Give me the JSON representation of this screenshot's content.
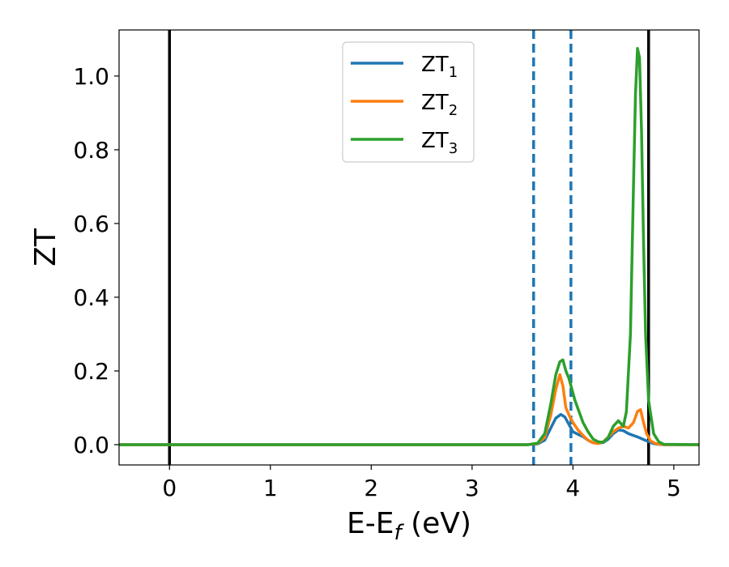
{
  "chart_data": {
    "type": "line",
    "xlabel": "E-E",
    "xlabel_sub": "f",
    "xlabel_unit": " (eV)",
    "ylabel": "ZT",
    "xlim": [
      -0.5,
      5.25
    ],
    "ylim": [
      -0.055,
      1.125
    ],
    "xticks": [
      0,
      1,
      2,
      3,
      4,
      5
    ],
    "xtick_labels": [
      "0",
      "1",
      "2",
      "3",
      "4",
      "5"
    ],
    "yticks": [
      0.0,
      0.2,
      0.4,
      0.6,
      0.8,
      1.0
    ],
    "ytick_labels": [
      "0.0",
      "0.2",
      "0.4",
      "0.6",
      "0.8",
      "1.0"
    ],
    "legend_position": "upper-center",
    "grid": false,
    "vlines": [
      {
        "x": 0.0,
        "style": "solid",
        "color": "#000000"
      },
      {
        "x": 4.75,
        "style": "solid",
        "color": "#000000"
      },
      {
        "x": 3.61,
        "style": "dashed",
        "color": "#1f77b4"
      },
      {
        "x": 3.98,
        "style": "dashed",
        "color": "#1f77b4"
      }
    ],
    "series": [
      {
        "name": "ZT",
        "name_sub": "1",
        "color": "#1f77b4",
        "x": [
          -0.5,
          3.55,
          3.65,
          3.72,
          3.78,
          3.83,
          3.88,
          3.92,
          3.96,
          4.0,
          4.05,
          4.1,
          4.15,
          4.2,
          4.25,
          4.3,
          4.35,
          4.4,
          4.45,
          4.5,
          4.55,
          4.6,
          4.65,
          4.7,
          4.75,
          4.8,
          4.85,
          4.9,
          5.25
        ],
        "y": [
          0.0,
          0.0,
          0.002,
          0.012,
          0.045,
          0.072,
          0.082,
          0.075,
          0.055,
          0.035,
          0.028,
          0.022,
          0.012,
          0.005,
          0.004,
          0.006,
          0.015,
          0.03,
          0.04,
          0.038,
          0.03,
          0.025,
          0.02,
          0.014,
          0.008,
          0.003,
          0.001,
          0.0,
          0.0
        ]
      },
      {
        "name": "ZT",
        "name_sub": "2",
        "color": "#ff7f0e",
        "x": [
          -0.5,
          3.55,
          3.65,
          3.72,
          3.78,
          3.83,
          3.87,
          3.9,
          3.93,
          3.97,
          4.0,
          4.05,
          4.1,
          4.15,
          4.2,
          4.25,
          4.3,
          4.35,
          4.4,
          4.45,
          4.5,
          4.55,
          4.6,
          4.64,
          4.67,
          4.7,
          4.73,
          4.77,
          4.82,
          4.9,
          5.25
        ],
        "y": [
          0.0,
          0.0,
          0.003,
          0.02,
          0.08,
          0.15,
          0.19,
          0.16,
          0.1,
          0.075,
          0.06,
          0.04,
          0.025,
          0.012,
          0.005,
          0.003,
          0.008,
          0.02,
          0.035,
          0.045,
          0.05,
          0.045,
          0.06,
          0.09,
          0.095,
          0.06,
          0.03,
          0.01,
          0.003,
          0.0,
          0.0
        ]
      },
      {
        "name": "ZT",
        "name_sub": "3",
        "color": "#2ca02c",
        "x": [
          -0.5,
          3.55,
          3.65,
          3.72,
          3.78,
          3.83,
          3.87,
          3.9,
          3.93,
          3.96,
          3.99,
          4.02,
          4.06,
          4.1,
          4.15,
          4.2,
          4.25,
          4.3,
          4.35,
          4.4,
          4.45,
          4.5,
          4.53,
          4.57,
          4.6,
          4.62,
          4.64,
          4.66,
          4.68,
          4.7,
          4.72,
          4.75,
          4.8,
          4.85,
          4.9,
          5.25
        ],
        "y": [
          0.0,
          0.0,
          0.004,
          0.03,
          0.11,
          0.19,
          0.225,
          0.23,
          0.2,
          0.18,
          0.15,
          0.12,
          0.09,
          0.06,
          0.035,
          0.015,
          0.008,
          0.006,
          0.02,
          0.05,
          0.065,
          0.05,
          0.09,
          0.3,
          0.7,
          0.95,
          1.075,
          1.05,
          0.85,
          0.55,
          0.3,
          0.12,
          0.03,
          0.008,
          0.001,
          0.0
        ]
      }
    ]
  }
}
